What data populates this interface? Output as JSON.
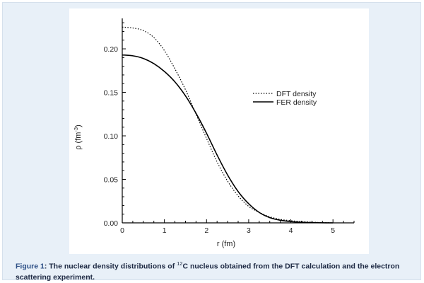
{
  "chart_data": {
    "type": "line",
    "xlabel": "r (fm)",
    "ylabel": "ρ (fm",
    "ylabel_exponent": "-3",
    "ylabel_close": ")",
    "xlim": [
      0,
      5.5
    ],
    "ylim": [
      0,
      0.235
    ],
    "xticks": [
      "0",
      "1",
      "2",
      "3",
      "4",
      "5"
    ],
    "yticks": [
      "0.00",
      "0.05",
      "0.10",
      "0.15",
      "0.20"
    ],
    "legend_position": "right",
    "series": [
      {
        "name": "DFT density",
        "style": "dotted",
        "x": [
          0,
          0.25,
          0.5,
          0.75,
          1.0,
          1.25,
          1.5,
          1.75,
          2.0,
          2.25,
          2.5,
          2.75,
          3.0,
          3.25,
          3.5,
          3.75,
          4.0,
          4.25,
          4.5,
          4.75,
          5.0
        ],
        "y": [
          0.225,
          0.224,
          0.221,
          0.213,
          0.198,
          0.177,
          0.153,
          0.125,
          0.097,
          0.07,
          0.048,
          0.031,
          0.019,
          0.012,
          0.007,
          0.004,
          0.0025,
          0.0015,
          0.0008,
          0.0003,
          0.0001
        ]
      },
      {
        "name": "FER density",
        "style": "solid",
        "x": [
          0,
          0.25,
          0.5,
          0.75,
          1.0,
          1.25,
          1.5,
          1.75,
          2.0,
          2.25,
          2.5,
          2.75,
          3.0,
          3.25,
          3.5,
          3.75,
          4.0,
          4.25,
          4.5,
          4.75,
          5.0
        ],
        "y": [
          0.193,
          0.192,
          0.189,
          0.183,
          0.174,
          0.162,
          0.146,
          0.126,
          0.103,
          0.078,
          0.055,
          0.036,
          0.022,
          0.012,
          0.006,
          0.003,
          0.0015,
          0.0007,
          0.0003,
          0.0001,
          0.0
        ]
      }
    ]
  },
  "caption": {
    "label": "Figure 1",
    "text_before": ": The nuclear density distributions of ",
    "isotope_mass": "12",
    "text_after": "C nucleus obtained from the DFT calculation and the electron scattering experiment."
  }
}
